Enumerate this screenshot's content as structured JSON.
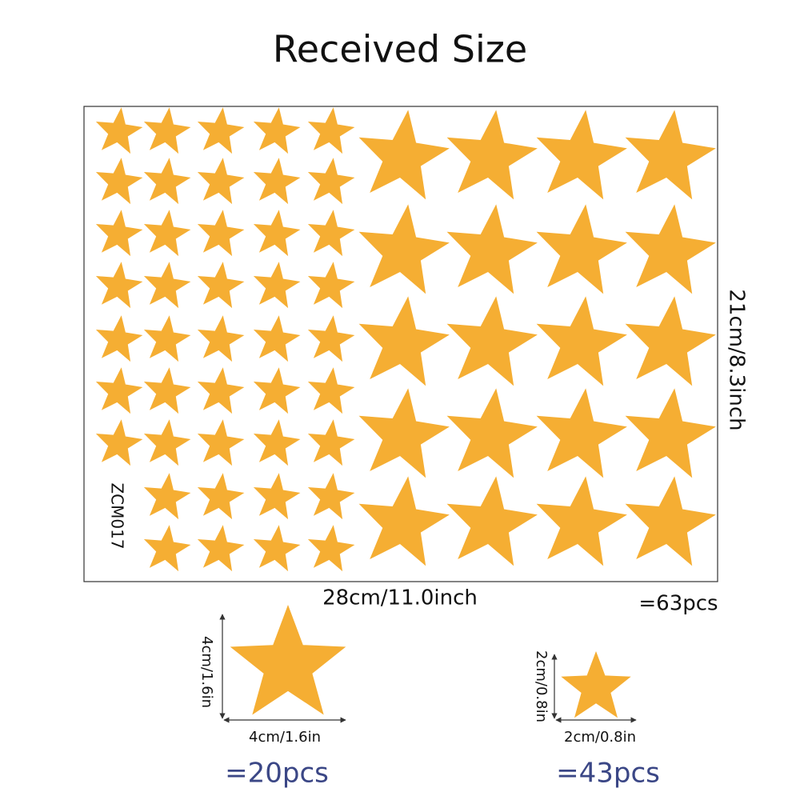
{
  "header": {
    "title": "Received Size"
  },
  "sheet": {
    "height_label": "21cm/8.3inch",
    "width_label": "28cm/11.0inch",
    "total": "=63pcs",
    "code": "ZCM017"
  },
  "large_star": {
    "height_label": "4cm/1.6in",
    "width_label": "4cm/1.6in",
    "count": "=20pcs"
  },
  "small_star": {
    "height_label": "2cm/0.8in",
    "width_label": "2cm/0.8in",
    "count": "=43pcs"
  }
}
